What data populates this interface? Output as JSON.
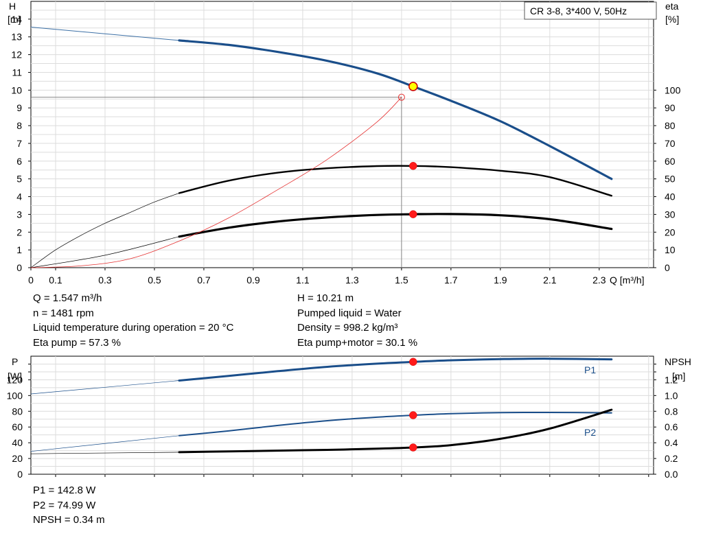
{
  "header": {
    "title": "CR 3-8, 3*400 V, 50Hz"
  },
  "chart_data": [
    {
      "type": "line",
      "name": "pump-curve-chart",
      "left_axis": {
        "label": "H",
        "unit": "[m]",
        "ylim": [
          0,
          15
        ],
        "ticks": [
          0,
          1,
          2,
          3,
          4,
          5,
          6,
          7,
          8,
          9,
          10,
          11,
          12,
          13,
          14
        ]
      },
      "right_axis": {
        "label": "eta",
        "unit": "[%]",
        "ylim": [
          0,
          150
        ],
        "ticks": [
          0,
          10,
          20,
          30,
          40,
          50,
          60,
          70,
          80,
          90,
          100
        ]
      },
      "x_axis": {
        "label": "Q [m³/h]",
        "xlim": [
          0,
          2.52
        ],
        "ticks": [
          0,
          0.1,
          0.3,
          0.5,
          0.7,
          0.9,
          1.1,
          1.3,
          1.5,
          1.7,
          1.9,
          2.1,
          2.3
        ]
      },
      "grid": true,
      "series": [
        {
          "name": "H",
          "axis": "left",
          "color": "#1a4e8a",
          "width": 3.2,
          "color_ext": "#3b6fa5",
          "width_ext": 1,
          "ext": [
            [
              0,
              13.55
            ],
            [
              0.6,
              12.8
            ]
          ],
          "main": [
            [
              0.6,
              12.8
            ],
            [
              0.8,
              12.55
            ],
            [
              1.0,
              12.15
            ],
            [
              1.2,
              11.65
            ],
            [
              1.4,
              10.95
            ],
            [
              1.547,
              10.21
            ],
            [
              1.7,
              9.4
            ],
            [
              1.9,
              8.25
            ],
            [
              2.1,
              6.85
            ],
            [
              2.35,
              5.0
            ]
          ]
        },
        {
          "name": "Eta pump",
          "axis": "right",
          "color": "#000000",
          "width": 2.4,
          "color_ext": "#000000",
          "width_ext": 0.7,
          "ext": [
            [
              0,
              0
            ],
            [
              0.1,
              10
            ],
            [
              0.2,
              18
            ],
            [
              0.3,
              25
            ],
            [
              0.4,
              31
            ],
            [
              0.5,
              37
            ],
            [
              0.6,
              42
            ]
          ],
          "main": [
            [
              0.6,
              42
            ],
            [
              0.8,
              49
            ],
            [
              1.0,
              53.5
            ],
            [
              1.2,
              56
            ],
            [
              1.4,
              57.2
            ],
            [
              1.547,
              57.3
            ],
            [
              1.7,
              56.6
            ],
            [
              1.9,
              54.6
            ],
            [
              2.1,
              51
            ],
            [
              2.35,
              40.5
            ]
          ]
        },
        {
          "name": "Eta pump+motor",
          "axis": "right",
          "color": "#000000",
          "width": 3.2,
          "color_ext": "#000000",
          "width_ext": 0.7,
          "ext": [
            [
              0,
              0
            ],
            [
              0.3,
              7
            ],
            [
              0.6,
              17.5
            ]
          ],
          "main": [
            [
              0.6,
              17.5
            ],
            [
              0.8,
              22.5
            ],
            [
              1.0,
              26
            ],
            [
              1.2,
              28.3
            ],
            [
              1.4,
              29.7
            ],
            [
              1.547,
              30.1
            ],
            [
              1.7,
              30.2
            ],
            [
              1.9,
              29.5
            ],
            [
              2.1,
              27.3
            ],
            [
              2.35,
              21.8
            ]
          ]
        },
        {
          "name": "Efficiency scale curve",
          "axis": "left",
          "color": "#e53030",
          "width": 0.8,
          "main": [
            [
              0,
              0
            ],
            [
              0.2,
              0.1
            ],
            [
              0.4,
              0.5
            ],
            [
              0.6,
              1.5
            ],
            [
              0.8,
              2.8
            ],
            [
              1.0,
              4.4
            ],
            [
              1.2,
              6.1
            ],
            [
              1.4,
              8.2
            ],
            [
              1.5,
              9.6
            ]
          ]
        }
      ],
      "duty_point": {
        "Q": 1.547,
        "H": 10.21
      },
      "ref_point": {
        "Q": 1.5,
        "H": 9.6
      },
      "markers": [
        {
          "Q": 1.547,
          "eta": 57.3
        },
        {
          "Q": 1.547,
          "eta": 30.1
        }
      ]
    },
    {
      "type": "line",
      "name": "power-npsh-chart",
      "left_axis": {
        "label": "P",
        "unit": "[W]",
        "ylim": [
          0,
          150
        ],
        "ticks": [
          0,
          20,
          40,
          60,
          80,
          100,
          120
        ]
      },
      "right_axis": {
        "label": "NPSH",
        "unit": "[m]",
        "ylim": [
          0,
          1.5
        ],
        "ticks": [
          "0.0",
          "0.2",
          "0.4",
          "0.6",
          "0.8",
          "1.0",
          "1.2"
        ]
      },
      "xlim": [
        0,
        2.52
      ],
      "grid": true,
      "series": [
        {
          "name": "P1",
          "axis": "left",
          "color": "#1a4e8a",
          "width": 3,
          "color_ext": "#1a4e8a",
          "width_ext": 0.7,
          "ext": [
            [
              0,
              102
            ],
            [
              0.6,
              119
            ]
          ],
          "main": [
            [
              0.6,
              119
            ],
            [
              0.8,
              125
            ],
            [
              1.0,
              131
            ],
            [
              1.2,
              136.5
            ],
            [
              1.4,
              140.5
            ],
            [
              1.547,
              142.8
            ],
            [
              1.7,
              144.8
            ],
            [
              1.9,
              146.3
            ],
            [
              2.1,
              146.8
            ],
            [
              2.35,
              146
            ]
          ]
        },
        {
          "name": "P2",
          "axis": "left",
          "color": "#1a4e8a",
          "width": 2,
          "color_ext": "#1a4e8a",
          "width_ext": 0.7,
          "ext": [
            [
              0,
              29
            ],
            [
              0.6,
              49
            ]
          ],
          "main": [
            [
              0.6,
              49
            ],
            [
              0.8,
              55
            ],
            [
              1.0,
              62
            ],
            [
              1.2,
              68
            ],
            [
              1.4,
              72.5
            ],
            [
              1.547,
              74.99
            ],
            [
              1.7,
              77
            ],
            [
              1.9,
              78.3
            ],
            [
              2.1,
              78.5
            ],
            [
              2.35,
              78
            ]
          ]
        },
        {
          "name": "NPSH",
          "axis": "right",
          "color": "#000000",
          "width": 3,
          "color_ext": "#000000",
          "width_ext": 0.7,
          "ext": [
            [
              0,
              0.26
            ],
            [
              0.6,
              0.28
            ]
          ],
          "main": [
            [
              0.6,
              0.28
            ],
            [
              0.8,
              0.29
            ],
            [
              1.0,
              0.3
            ],
            [
              1.2,
              0.31
            ],
            [
              1.4,
              0.325
            ],
            [
              1.547,
              0.34
            ],
            [
              1.7,
              0.37
            ],
            [
              1.9,
              0.45
            ],
            [
              2.1,
              0.58
            ],
            [
              2.35,
              0.82
            ]
          ]
        }
      ],
      "markers": [
        {
          "Q": 1.547,
          "P": 142.8
        },
        {
          "Q": 1.547,
          "P": 74.99
        },
        {
          "Q": 1.547,
          "NPSH": 0.34
        }
      ],
      "series_labels": [
        "P1",
        "P2"
      ]
    }
  ],
  "readout": {
    "q": "Q = 1.547 m³/h",
    "n": "n = 1481 rpm",
    "temp": "Liquid temperature during operation = 20 °C",
    "eta_pump": "Eta pump = 57.3 %",
    "h": "H = 10.21 m",
    "liquid": "Pumped liquid = Water",
    "density": "Density = 998.2 kg/m³",
    "eta_total": "Eta pump+motor = 30.1 %",
    "p1": "P1 = 142.8 W",
    "p2": "P2 = 74.99 W",
    "npsh": "NPSH = 0.34 m"
  }
}
